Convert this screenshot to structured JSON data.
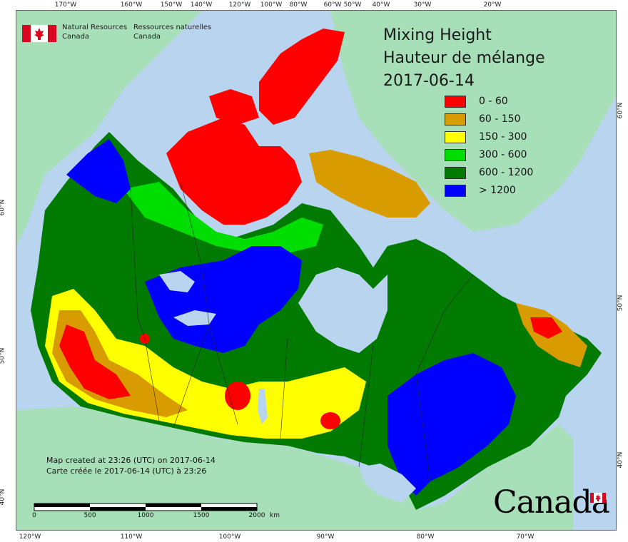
{
  "title": {
    "line1": "Mixing Height",
    "line2": "Hauteur de mélange",
    "line3": "2017-06-14"
  },
  "agency": {
    "en_line1": "Natural Resources",
    "en_line2": "Canada",
    "fr_line1": "Ressources naturelles",
    "fr_line2": "Canada"
  },
  "legend": [
    {
      "label": "0 - 60",
      "color": "#ff0000"
    },
    {
      "label": "60 - 150",
      "color": "#d89b00"
    },
    {
      "label": "150 - 300",
      "color": "#ffff00"
    },
    {
      "label": "300 - 600",
      "color": "#00dd00"
    },
    {
      "label": "600 - 1200",
      "color": "#007a00"
    },
    {
      "label": "> 1200",
      "color": "#0000ff"
    }
  ],
  "credits": {
    "en": "Map created at 23:26 (UTC) on 2017-06-14",
    "fr": "Carte créée le 2017-06-14 (UTC) à 23:26"
  },
  "scale_bar": {
    "labels": [
      "0",
      "500",
      "1000",
      "1500",
      "2000"
    ],
    "unit": "km"
  },
  "graticule": {
    "top": [
      "170°W",
      "160°W",
      "150°W",
      "140°W",
      "120°W",
      "100°W",
      "80°W",
      "60°W",
      "50°W",
      "40°W",
      "30°W",
      "20°W"
    ],
    "bottom": [
      "120°W",
      "110°W",
      "100°W",
      "90°W",
      "80°W",
      "70°W"
    ],
    "left": [
      "60°N",
      "50°N",
      "40°N"
    ],
    "right": [
      "60°N",
      "50°N",
      "40°N"
    ]
  },
  "wordmark": "Canada",
  "colors": {
    "ocean": "#b8d4ee",
    "land_outside": "#a7dfb8",
    "lake": "#b8d4ee",
    "flag_red": "#d80621"
  }
}
